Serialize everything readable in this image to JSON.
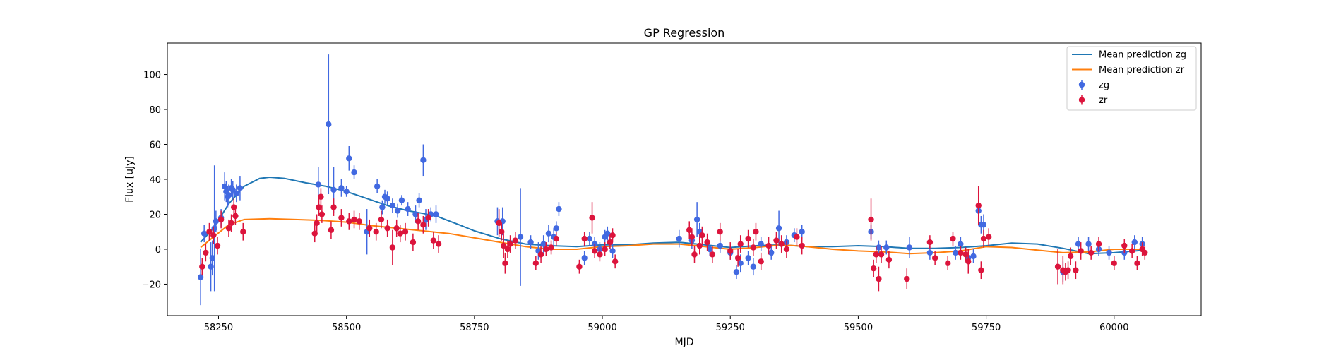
{
  "chart_data": {
    "type": "scatter",
    "title": "GP Regression",
    "xlabel": "MJD",
    "ylabel": "Flux [uJy]",
    "xlim": [
      58150,
      60170
    ],
    "ylim": [
      -38,
      118
    ],
    "xticks": [
      58250,
      58500,
      58750,
      59000,
      59250,
      59500,
      59750,
      60000
    ],
    "yticks": [
      -20,
      0,
      20,
      40,
      60,
      80,
      100
    ],
    "grid": false,
    "legend_position": "top-right",
    "colors": {
      "zg_line": "#1f77b4",
      "zr_line": "#ff7f0e",
      "zg_points": "#4169e1",
      "zr_points": "#dc143c"
    },
    "legend": [
      {
        "label": "Mean prediction zg",
        "kind": "line",
        "color": "#1f77b4"
      },
      {
        "label": "Mean prediction zr",
        "kind": "line",
        "color": "#ff7f0e"
      },
      {
        "label": "zg",
        "kind": "errorbar",
        "color": "#4169e1"
      },
      {
        "label": "zr",
        "kind": "errorbar",
        "color": "#dc143c"
      }
    ],
    "series": [
      {
        "name": "Mean prediction zg",
        "kind": "line",
        "x": [
          58215,
          58240,
          58270,
          58300,
          58330,
          58350,
          58380,
          58420,
          58460,
          58500,
          58540,
          58580,
          58620,
          58650,
          58680,
          58720,
          58750,
          58800,
          58850,
          58900,
          58950,
          59000,
          59050,
          59100,
          59150,
          59200,
          59250,
          59300,
          59350,
          59400,
          59450,
          59500,
          59550,
          59600,
          59650,
          59700,
          59750,
          59800,
          59850,
          59900,
          59950,
          60000,
          60060
        ],
        "y": [
          4,
          12,
          26,
          36,
          40.5,
          41.2,
          40.5,
          38,
          36,
          33,
          29,
          25,
          22,
          20.5,
          18.5,
          14,
          10.5,
          6,
          3,
          2,
          1.5,
          2.5,
          2.5,
          3.5,
          4,
          2.5,
          1,
          2,
          2.5,
          1.5,
          1.5,
          2,
          1.5,
          0.5,
          0.5,
          1,
          2,
          3.5,
          3,
          0.5,
          -2.5,
          -2,
          -0.5
        ]
      },
      {
        "name": "Mean prediction zr",
        "kind": "line",
        "x": [
          58215,
          58240,
          58270,
          58300,
          58350,
          58400,
          58450,
          58500,
          58550,
          58600,
          58650,
          58700,
          58750,
          58800,
          58850,
          58900,
          58950,
          59000,
          59050,
          59100,
          59150,
          59200,
          59250,
          59300,
          59350,
          59400,
          59450,
          59500,
          59550,
          59600,
          59650,
          59700,
          59750,
          59800,
          59850,
          59900,
          59950,
          60000,
          60060
        ],
        "y": [
          1,
          7,
          14,
          17,
          17.5,
          17,
          16.5,
          15.5,
          13.5,
          12,
          10.5,
          9,
          6.5,
          4,
          1.5,
          0,
          0,
          1.5,
          2,
          3,
          3,
          1.5,
          0,
          1,
          2.5,
          1.5,
          0,
          -1,
          -1.5,
          -2.5,
          -2,
          -1,
          1.5,
          1,
          -0.5,
          -2,
          -1.5,
          0,
          0
        ]
      },
      {
        "name": "zg",
        "kind": "errorbar",
        "x": [
          58215,
          58222,
          58235,
          58238,
          58242,
          58245,
          58255,
          58262,
          58265,
          58268,
          58270,
          58275,
          58278,
          58285,
          58292,
          58445,
          58465,
          58475,
          58490,
          58500,
          58505,
          58515,
          58540,
          58560,
          58570,
          58575,
          58580,
          58590,
          58600,
          58608,
          58620,
          58635,
          58642,
          58650,
          58655,
          58665,
          58675,
          58795,
          58805,
          58840,
          58860,
          58875,
          58885,
          58895,
          58905,
          58910,
          58915,
          58965,
          58975,
          58985,
          58995,
          59005,
          59010,
          59015,
          59020,
          59150,
          59175,
          59185,
          59190,
          59210,
          59230,
          59250,
          59262,
          59270,
          59285,
          59295,
          59310,
          59330,
          59345,
          59360,
          59375,
          59390,
          59525,
          59540,
          59555,
          59600,
          59640,
          59690,
          59700,
          59715,
          59725,
          59735,
          59740,
          59745,
          59900,
          59930,
          59950,
          59970,
          59990,
          60020,
          60040,
          60055
        ],
        "y": [
          -16,
          9,
          -10,
          -5,
          12,
          16,
          18,
          36,
          33,
          30,
          31,
          35,
          34,
          32,
          35,
          37,
          71.5,
          34,
          35,
          33,
          52,
          44,
          10,
          36,
          24,
          30,
          29,
          25,
          22,
          28,
          23,
          20,
          28,
          51,
          17,
          20,
          20,
          16,
          16,
          7,
          4,
          -1,
          3,
          9,
          7,
          12,
          23,
          -5,
          6,
          3,
          0,
          7,
          9,
          4,
          -1,
          6,
          5,
          17,
          10,
          0,
          2,
          -2,
          -13,
          -8,
          -5,
          -10,
          3,
          -2,
          12,
          4,
          8,
          10,
          10,
          1,
          1,
          1,
          -2,
          -2,
          3,
          -5,
          -4,
          22,
          14,
          14,
          -13,
          3,
          3,
          0,
          -2,
          -2,
          4,
          3
        ],
        "err": [
          16,
          5,
          14,
          10,
          36,
          6,
          5,
          8,
          6,
          6,
          6,
          5,
          5,
          5,
          7,
          10,
          40,
          13,
          5,
          3,
          7,
          4,
          13,
          4,
          4,
          4,
          4,
          4,
          4,
          3,
          4,
          5,
          4,
          9,
          6,
          4,
          5,
          8,
          8,
          28,
          4,
          5,
          5,
          5,
          5,
          4,
          4,
          4,
          4,
          4,
          4,
          4,
          4,
          4,
          4,
          5,
          5,
          10,
          5,
          4,
          4,
          4,
          4,
          5,
          4,
          5,
          4,
          4,
          10,
          4,
          4,
          4,
          4,
          4,
          4,
          6,
          4,
          4,
          4,
          4,
          4,
          6,
          5,
          6,
          6,
          4,
          4,
          4,
          4,
          4,
          4,
          4
        ]
      },
      {
        "name": "zr",
        "kind": "errorbar",
        "x": [
          58218,
          58225,
          58232,
          58240,
          58248,
          58255,
          58270,
          58275,
          58280,
          58283,
          58298,
          58438,
          58442,
          58446,
          58450,
          58452,
          58470,
          58475,
          58490,
          58505,
          58515,
          58525,
          58545,
          58558,
          58568,
          58580,
          58590,
          58598,
          58605,
          58615,
          58630,
          58640,
          58650,
          58660,
          58670,
          58680,
          58798,
          58803,
          58807,
          58810,
          58815,
          58820,
          58830,
          58870,
          58880,
          58890,
          58900,
          58910,
          58955,
          58965,
          58980,
          58985,
          58995,
          59005,
          59015,
          59020,
          59025,
          59170,
          59175,
          59180,
          59190,
          59195,
          59205,
          59215,
          59230,
          59250,
          59265,
          59270,
          59285,
          59295,
          59300,
          59310,
          59325,
          59340,
          59350,
          59360,
          59380,
          59390,
          59525,
          59530,
          59535,
          59540,
          59545,
          59560,
          59595,
          59640,
          59650,
          59675,
          59685,
          59700,
          59710,
          59715,
          59735,
          59740,
          59745,
          59755,
          59890,
          59900,
          59905,
          59910,
          59915,
          59925,
          59935,
          59955,
          59970,
          60000,
          60020,
          60035,
          60045,
          60055,
          60060
        ],
        "y": [
          -10,
          -2,
          10,
          8,
          2,
          17,
          12,
          15,
          24,
          19,
          10,
          9,
          15,
          24,
          30,
          20,
          11,
          24,
          18,
          16,
          17,
          16,
          12,
          10,
          17,
          12,
          1,
          12,
          9,
          10,
          4,
          16,
          14,
          18,
          5,
          3,
          15,
          10,
          2,
          -8,
          0,
          3,
          5,
          -8,
          -3,
          0,
          1,
          6,
          -10,
          6,
          18,
          -1,
          -3,
          0,
          4,
          8,
          -7,
          11,
          7,
          -3,
          2,
          8,
          4,
          -3,
          10,
          -1,
          -5,
          3,
          6,
          1,
          10,
          -7,
          2,
          5,
          3,
          0,
          7,
          2,
          17,
          -11,
          -3,
          -17,
          -3,
          -6,
          -17,
          4,
          -5,
          -8,
          6,
          -2,
          -3,
          -7,
          25,
          -12,
          6,
          7,
          -10,
          -12,
          -13,
          -12,
          -4,
          -12,
          -1,
          -2,
          3,
          -8,
          2,
          -1,
          -8,
          0,
          -2
        ],
        "err": [
          5,
          5,
          5,
          5,
          5,
          5,
          5,
          5,
          5,
          5,
          5,
          5,
          5,
          5,
          5,
          5,
          5,
          5,
          5,
          5,
          5,
          5,
          5,
          5,
          5,
          5,
          10,
          5,
          5,
          5,
          5,
          5,
          5,
          5,
          5,
          5,
          8,
          5,
          7,
          6,
          5,
          5,
          5,
          4,
          5,
          4,
          4,
          4,
          4,
          4,
          9,
          4,
          4,
          4,
          4,
          4,
          4,
          5,
          5,
          5,
          5,
          5,
          5,
          5,
          5,
          5,
          5,
          5,
          5,
          5,
          5,
          5,
          5,
          5,
          5,
          5,
          5,
          5,
          12,
          5,
          5,
          7,
          5,
          5,
          6,
          4,
          4,
          4,
          4,
          4,
          4,
          7,
          11,
          5,
          5,
          5,
          10,
          8,
          5,
          5,
          5,
          5,
          5,
          4,
          4,
          4,
          4,
          4,
          4,
          4,
          4
        ]
      }
    ]
  }
}
